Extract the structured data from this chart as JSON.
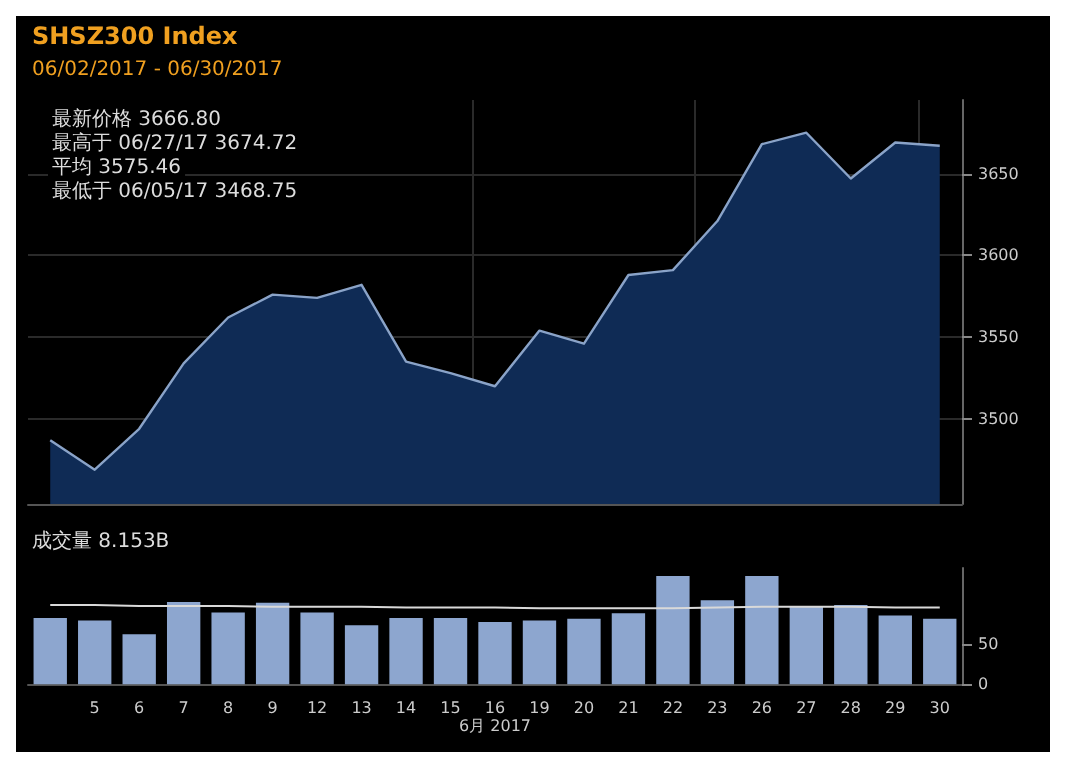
{
  "chart_data": [
    {
      "type": "area",
      "title": "SHSZ300 Index",
      "subtitle": "06/02/2017 - 06/30/2017",
      "categories": [
        null,
        "5",
        "6",
        "7",
        "8",
        "9",
        "12",
        "13",
        "14",
        "15",
        "16",
        "19",
        "20",
        "21",
        "22",
        "23",
        "26",
        "27",
        "28",
        "29",
        "30"
      ],
      "series": [
        {
          "color": "#0f2b55",
          "values": [
            3487,
            3469,
            3494,
            3534,
            3562,
            3576,
            3574,
            3582,
            3535,
            3528,
            3520,
            3554,
            3546,
            3588,
            3591,
            3621,
            3668,
            3675,
            3647,
            3669,
            3667
          ]
        }
      ],
      "ylim": [
        3448,
        3695
      ],
      "yticks": [
        3500,
        3550,
        3600,
        3650
      ],
      "grid": true,
      "tick_labels": "y",
      "annotations": [
        "最新价格 3666.80",
        "最高于 06/27/17 3674.72",
        "平均 3575.46",
        "最低于 06/05/17 3468.75"
      ]
    },
    {
      "type": "bar",
      "title": "成交量 8.153B",
      "xlabel": "6月 2017",
      "categories": [
        null,
        "5",
        "6",
        "7",
        "8",
        "9",
        "12",
        "13",
        "14",
        "15",
        "16",
        "19",
        "20",
        "21",
        "22",
        "23",
        "26",
        "27",
        "28",
        "29",
        "30"
      ],
      "series": [
        {
          "color": "#8da6cf",
          "values": [
            82,
            79,
            62,
            102,
            89,
            101,
            89,
            73,
            82,
            82,
            77,
            79,
            81,
            88,
            134,
            104,
            134,
            96,
            98,
            85,
            81
          ]
        },
        {
          "type": "line",
          "color": "#d9d9d9",
          "values": [
            98,
            98,
            97,
            97,
            97,
            96,
            96,
            96,
            95,
            95,
            95,
            94,
            94,
            94,
            94,
            95,
            96,
            96,
            96,
            95,
            95
          ]
        }
      ],
      "ylim": [
        0,
        144
      ],
      "yticks": [
        0,
        50
      ],
      "grid": false
    }
  ]
}
